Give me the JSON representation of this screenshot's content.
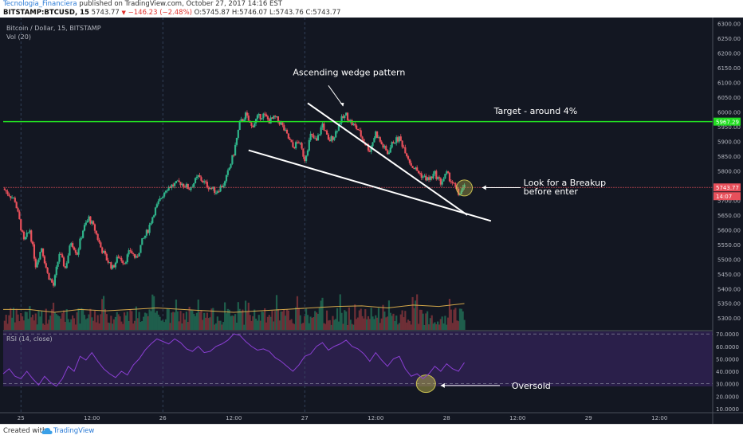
{
  "header": {
    "author": "Tecnologia_Financiera",
    "published": " published on TradingView.com, October 27, 2017 14:16 EST",
    "symbol": "BITSTAMP:BTCUSD, 15",
    "last": " 5743.77 ",
    "down_arrow": "▼",
    "change": " −146.23 (−2.48%)",
    "ohlc": " O:5745.87 H:5746.07 L:5743.76 C:5743.77"
  },
  "footer": {
    "created_with": "Created with",
    "brand": "TradingView",
    "logo_icon": "tradingview-cloud-icon"
  },
  "colors": {
    "background": "#131722",
    "up": "#2fb38a",
    "down": "#e8505b",
    "target_line": "#22dd22",
    "price_line": "#e8505b",
    "rsi_band": "#2a1f4a",
    "rsi_line": "#8b3fd4",
    "volume_ma": "#d4a84a",
    "annotation": "#ffffff",
    "highlight_circle": "#c9c050"
  },
  "chart_data": [
    {
      "type": "candlestick",
      "title": "Bitcoin / Dollar, 15, BITSTAMP",
      "indicator_label": "Vol (20)",
      "ylim": [
        5260,
        6310
      ],
      "yticks": [
        6300,
        6250,
        6200,
        6150,
        6100,
        6050,
        6000,
        5950,
        5900,
        5850,
        5800,
        5750,
        5700,
        5650,
        5600,
        5550,
        5500,
        5450,
        5400,
        5350,
        5300
      ],
      "ytick_labels": [
        "6300.00",
        "6250.00",
        "6200.00",
        "6150.00",
        "6100.00",
        "6050.00",
        "6000.00",
        "5950.00",
        "5900.00",
        "5850.00",
        "5800.00",
        "5750.00",
        "5700.00",
        "5650.00",
        "5600.00",
        "5550.00",
        "5500.00",
        "5450.00",
        "5400.00",
        "5350.00",
        "5300.00"
      ],
      "x_labels": [
        "25",
        "12:00",
        "26",
        "12:00",
        "27",
        "12:00",
        "28",
        "12:00",
        "29",
        "12:00"
      ],
      "x_label_hours": [
        0,
        12,
        24,
        36,
        48,
        60,
        72,
        84,
        96,
        108
      ],
      "xlim_hours": [
        -3,
        117
      ],
      "close_path": [
        [
          -3,
          5740
        ],
        [
          -1,
          5700
        ],
        [
          0.5,
          5560
        ],
        [
          1.5,
          5600
        ],
        [
          2.5,
          5480
        ],
        [
          3.5,
          5540
        ],
        [
          4.5,
          5450
        ],
        [
          5.5,
          5410
        ],
        [
          6.5,
          5520
        ],
        [
          7.5,
          5470
        ],
        [
          8.5,
          5560
        ],
        [
          9.5,
          5520
        ],
        [
          10.5,
          5600
        ],
        [
          11.5,
          5640
        ],
        [
          12.5,
          5600
        ],
        [
          13.5,
          5540
        ],
        [
          14.5,
          5500
        ],
        [
          15.5,
          5470
        ],
        [
          16.5,
          5510
        ],
        [
          17.5,
          5490
        ],
        [
          18.5,
          5530
        ],
        [
          19.5,
          5500
        ],
        [
          20.5,
          5560
        ],
        [
          21.5,
          5600
        ],
        [
          22.5,
          5660
        ],
        [
          23.5,
          5700
        ],
        [
          24.5,
          5740
        ],
        [
          25.5,
          5750
        ],
        [
          27,
          5760
        ],
        [
          28.5,
          5740
        ],
        [
          30,
          5780
        ],
        [
          31.5,
          5750
        ],
        [
          33,
          5730
        ],
        [
          34.5,
          5760
        ],
        [
          36,
          5860
        ],
        [
          37,
          5960
        ],
        [
          38,
          5990
        ],
        [
          39,
          5950
        ],
        [
          40,
          5980
        ],
        [
          41,
          5990
        ],
        [
          42,
          5970
        ],
        [
          43,
          5980
        ],
        [
          44,
          5960
        ],
        [
          45,
          5920
        ],
        [
          46,
          5880
        ],
        [
          47,
          5900
        ],
        [
          48,
          5840
        ],
        [
          49,
          5920
        ],
        [
          50,
          5900
        ],
        [
          51,
          5960
        ],
        [
          52,
          5900
        ],
        [
          53,
          5920
        ],
        [
          54,
          5970
        ],
        [
          55,
          5990
        ],
        [
          56,
          5960
        ],
        [
          57,
          5940
        ],
        [
          58,
          5900
        ],
        [
          59,
          5870
        ],
        [
          60,
          5930
        ],
        [
          61,
          5890
        ],
        [
          62,
          5860
        ],
        [
          63,
          5900
        ],
        [
          64,
          5910
        ],
        [
          65,
          5870
        ],
        [
          66,
          5820
        ],
        [
          67,
          5800
        ],
        [
          68,
          5780
        ],
        [
          69,
          5770
        ],
        [
          70,
          5790
        ],
        [
          71,
          5760
        ],
        [
          72,
          5790
        ],
        [
          73,
          5760
        ],
        [
          74,
          5720
        ],
        [
          75,
          5744
        ]
      ],
      "last_hour": 75,
      "volume": {
        "ma_values": [
          5330,
          5330,
          5320,
          5330,
          5325,
          5330,
          5335,
          5330,
          5325,
          5320,
          5325,
          5330,
          5335,
          5340,
          5342,
          5335,
          5345,
          5340,
          5350
        ],
        "ylim": [
          5260,
          5560
        ]
      },
      "price_labels": [
        {
          "value": 5967.29,
          "text": "5967.29",
          "color": "#22dd22"
        },
        {
          "value": 5743.77,
          "text": "5743.77",
          "color": "#e8505b"
        },
        {
          "value": 5714,
          "text": "14:07",
          "color": "#e8505b"
        }
      ],
      "target_value": 5967.29,
      "last_value": 5743.77,
      "wedge": {
        "upper": [
          [
            48.5,
            6030
          ],
          [
            75.5,
            5650
          ]
        ],
        "lower": [
          [
            38.5,
            5870
          ],
          [
            79.5,
            5630
          ]
        ]
      },
      "annotations": [
        {
          "text": "Ascending wedge pattern",
          "hour": 46,
          "value": 6125
        },
        {
          "text": "Target - around 4%",
          "hour": 80,
          "value": 5993
        },
        {
          "text": "Look for a Breakup",
          "hour": 85,
          "value": 5750
        },
        {
          "text": "before enter",
          "hour": 85,
          "value": 5720
        }
      ],
      "circle": {
        "hour": 75,
        "value": 5742
      }
    },
    {
      "type": "line",
      "title": "RSI (14, close)",
      "ylim": [
        8,
        72
      ],
      "yticks": [
        70,
        60,
        50,
        40,
        30,
        20,
        10
      ],
      "ytick_labels": [
        "70.0000",
        "60.0000",
        "50.0000",
        "40.0000",
        "30.0000",
        "20.0000",
        "10.0000"
      ],
      "band": [
        30,
        70
      ],
      "rsi_series": [
        [
          -3,
          38
        ],
        [
          -2,
          42
        ],
        [
          -1,
          36
        ],
        [
          0,
          34
        ],
        [
          1,
          40
        ],
        [
          2,
          34
        ],
        [
          3,
          29
        ],
        [
          4,
          36
        ],
        [
          5,
          31
        ],
        [
          6,
          28
        ],
        [
          7,
          34
        ],
        [
          8,
          44
        ],
        [
          9,
          40
        ],
        [
          10,
          52
        ],
        [
          11,
          49
        ],
        [
          12,
          55
        ],
        [
          13,
          48
        ],
        [
          14,
          42
        ],
        [
          15,
          38
        ],
        [
          16,
          35
        ],
        [
          17,
          40
        ],
        [
          18,
          37
        ],
        [
          19,
          45
        ],
        [
          20,
          50
        ],
        [
          21,
          57
        ],
        [
          22,
          62
        ],
        [
          23,
          66
        ],
        [
          24,
          64
        ],
        [
          25,
          62
        ],
        [
          26,
          66
        ],
        [
          27,
          63
        ],
        [
          28,
          58
        ],
        [
          29,
          56
        ],
        [
          30,
          60
        ],
        [
          31,
          55
        ],
        [
          32,
          56
        ],
        [
          33,
          60
        ],
        [
          34,
          62
        ],
        [
          35,
          65
        ],
        [
          36,
          70
        ],
        [
          37,
          69
        ],
        [
          38,
          64
        ],
        [
          39,
          60
        ],
        [
          40,
          57
        ],
        [
          41,
          58
        ],
        [
          42,
          56
        ],
        [
          43,
          51
        ],
        [
          44,
          48
        ],
        [
          45,
          44
        ],
        [
          46,
          40
        ],
        [
          47,
          45
        ],
        [
          48,
          52
        ],
        [
          49,
          54
        ],
        [
          50,
          60
        ],
        [
          51,
          63
        ],
        [
          52,
          57
        ],
        [
          53,
          60
        ],
        [
          54,
          62
        ],
        [
          55,
          65
        ],
        [
          56,
          60
        ],
        [
          57,
          58
        ],
        [
          58,
          54
        ],
        [
          59,
          48
        ],
        [
          60,
          55
        ],
        [
          61,
          49
        ],
        [
          62,
          44
        ],
        [
          63,
          50
        ],
        [
          64,
          52
        ],
        [
          65,
          42
        ],
        [
          66,
          36
        ],
        [
          67,
          38
        ],
        [
          68,
          34
        ],
        [
          69,
          38
        ],
        [
          70,
          44
        ],
        [
          71,
          40
        ],
        [
          72,
          46
        ],
        [
          73,
          42
        ],
        [
          74,
          40
        ],
        [
          75,
          47
        ]
      ],
      "annotation": {
        "text": "Oversold",
        "hour": 83,
        "value": 26
      },
      "circle": {
        "hour": 68.5,
        "value": 30
      }
    }
  ]
}
